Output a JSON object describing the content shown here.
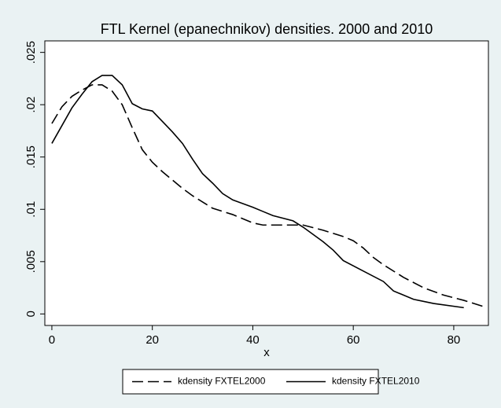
{
  "chart_data": {
    "type": "line",
    "title": "FTL Kernel (epanechnikov) densities. 2000 and 2010",
    "x_label": "x",
    "xlim": [
      -1.4,
      86.9
    ],
    "xticks": [
      0,
      20,
      40,
      60,
      80
    ],
    "ylim": [
      -0.0011,
      0.0261
    ],
    "yticks": [
      0,
      {
        "value": 0.005,
        "label": ".005"
      },
      {
        "value": 0.01,
        "label": ".01"
      },
      {
        "value": 0.015,
        "label": ".015"
      },
      {
        "value": 0.02,
        "label": ".02"
      },
      {
        "value": 0.025,
        "label": ".025"
      }
    ],
    "series": [
      {
        "name": "kdensity FXTEL2000",
        "color": "#000000",
        "line_style": "dashed",
        "x": [
          0,
          2,
          4,
          6,
          8,
          10,
          12,
          14,
          16,
          18,
          20,
          22,
          24,
          26,
          28,
          30,
          32,
          36,
          40,
          42,
          46,
          50,
          54,
          58,
          60,
          62,
          64,
          66,
          70,
          74,
          78,
          82,
          86
        ],
        "values": [
          0.0182,
          0.0198,
          0.0208,
          0.0214,
          0.0219,
          0.0219,
          0.0213,
          0.02,
          0.0178,
          0.0157,
          0.0145,
          0.0136,
          0.0128,
          0.012,
          0.0113,
          0.0107,
          0.0101,
          0.0095,
          0.0087,
          0.0085,
          0.0085,
          0.0085,
          0.008,
          0.0074,
          0.007,
          0.0063,
          0.0054,
          0.0047,
          0.0035,
          0.0025,
          0.0018,
          0.0013,
          0.0007
        ]
      },
      {
        "name": "kdensity FXTEL2010",
        "color": "#000000",
        "line_style": "solid",
        "x": [
          0,
          2,
          4,
          6,
          8,
          10,
          12,
          14,
          16,
          18,
          20,
          22,
          24,
          26,
          28,
          30,
          32,
          34,
          36,
          40,
          42,
          44,
          48,
          50,
          54,
          56,
          58,
          62,
          66,
          68,
          72,
          76,
          82
        ],
        "values": [
          0.0163,
          0.018,
          0.0197,
          0.021,
          0.0222,
          0.0228,
          0.0228,
          0.0219,
          0.0201,
          0.0196,
          0.0194,
          0.0184,
          0.0174,
          0.0163,
          0.0148,
          0.0134,
          0.0125,
          0.0115,
          0.0109,
          0.0102,
          0.0098,
          0.0094,
          0.0089,
          0.0083,
          0.0069,
          0.0061,
          0.0051,
          0.0041,
          0.0031,
          0.0022,
          0.0014,
          0.001,
          0.0006
        ]
      }
    ]
  }
}
